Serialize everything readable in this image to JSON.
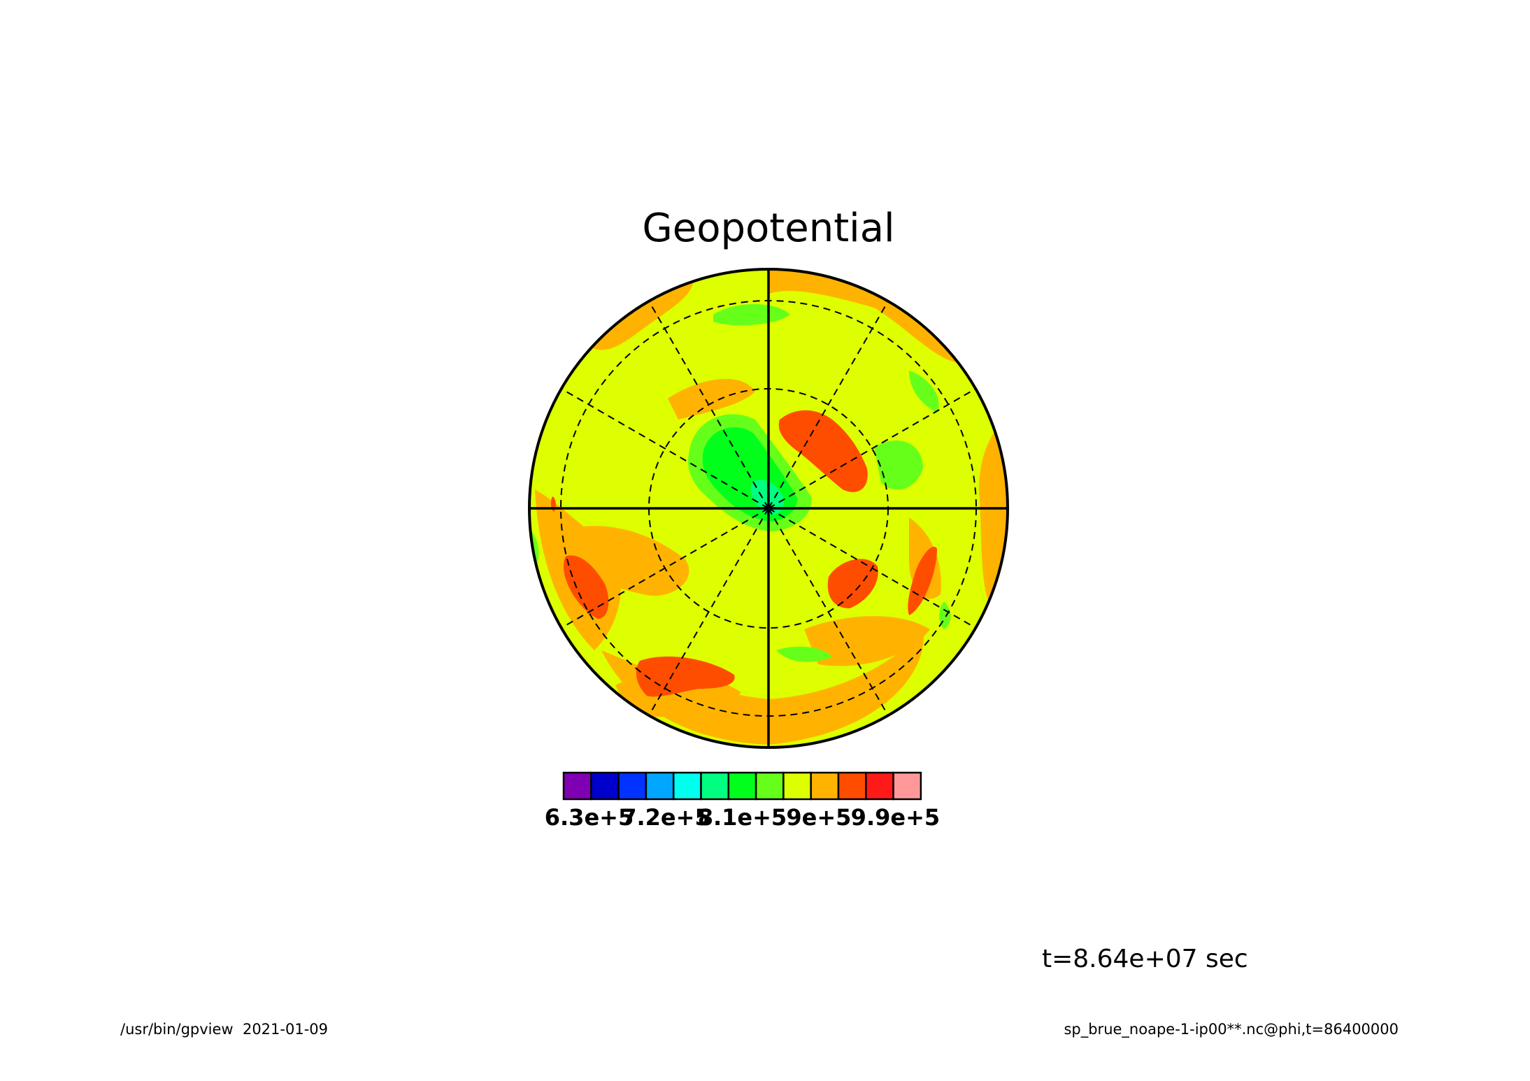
{
  "chart_data": {
    "type": "heatmap",
    "projection": "polar-stereographic",
    "title": "Geopotential",
    "time_label": "t=8.64e+07 sec",
    "colorbar": {
      "colors": [
        "#7f00b3",
        "#0000cc",
        "#0033ff",
        "#00a6ff",
        "#00ffee",
        "#00ff80",
        "#00ff1a",
        "#66ff1a",
        "#ddff00",
        "#ffb300",
        "#ff4d00",
        "#ff1a1a",
        "#ff9999"
      ],
      "tick_labels": [
        "6.3e+5",
        "7.2e+5",
        "8.1e+5",
        "9e+5",
        "9.9e+5"
      ],
      "tick_values": [
        630000,
        720000,
        810000,
        900000,
        990000
      ],
      "range": [
        600000,
        1020000
      ]
    },
    "grid": {
      "meridians_solid_deg": [
        0,
        90,
        180,
        270
      ],
      "meridians_dashed_deg": [
        30,
        60,
        120,
        150,
        210,
        240,
        300,
        330
      ],
      "latitude_circles": "dashed, 3 rings"
    },
    "regions": [
      {
        "level": "9.6e+5 to 9.9e+5",
        "color": "#ff4d00",
        "desc": "red blobs"
      },
      {
        "level": "9.3e+5 to 9.6e+5",
        "color": "#ffb300",
        "desc": "orange bands"
      },
      {
        "level": "9e+5 to 9.3e+5",
        "color": "#ddff00",
        "desc": "yellow-green background"
      },
      {
        "level": "8.7e+5 to 9e+5",
        "color": "#66ff1a",
        "desc": "light green patches"
      },
      {
        "level": "8.4e+5 to 8.7e+5",
        "color": "#00ff1a",
        "desc": "green near pole"
      },
      {
        "level": "8.1e+5 to 8.4e+5",
        "color": "#00ff80",
        "desc": "centre"
      }
    ]
  },
  "footer": {
    "left": "/usr/bin/gpview  2021-01-09",
    "right": "sp_brue_noape-1-ip00**.nc@phi,t=86400000"
  }
}
